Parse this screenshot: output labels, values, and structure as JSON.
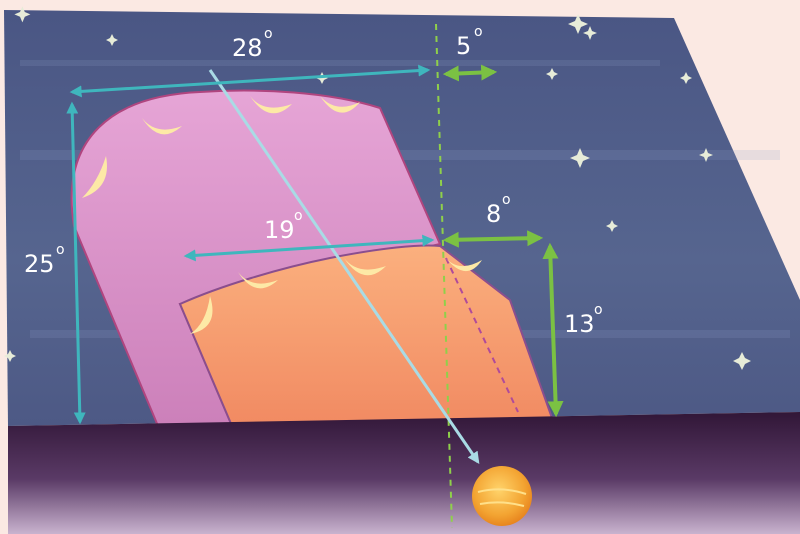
{
  "labels": {
    "sky_width": "28",
    "gap_top": "5",
    "inner_width": "19",
    "gap_mid": "8",
    "outer_height": "25",
    "inner_height": "13",
    "degree": "o"
  },
  "colors": {
    "sky": "#4c5b8c",
    "ground": "#3d1c44",
    "outer_band": "#d990c4",
    "inner_band": "#f59a70",
    "teal_arrow": "#3fb6bd",
    "green_arrow": "#7bc143",
    "moon": "#fde9a6",
    "sun": "#f0a530",
    "background": "#fbe9e3"
  },
  "icons": {
    "moon": "crescent-moon-icon",
    "star": "star-icon",
    "sun": "sun-icon"
  }
}
